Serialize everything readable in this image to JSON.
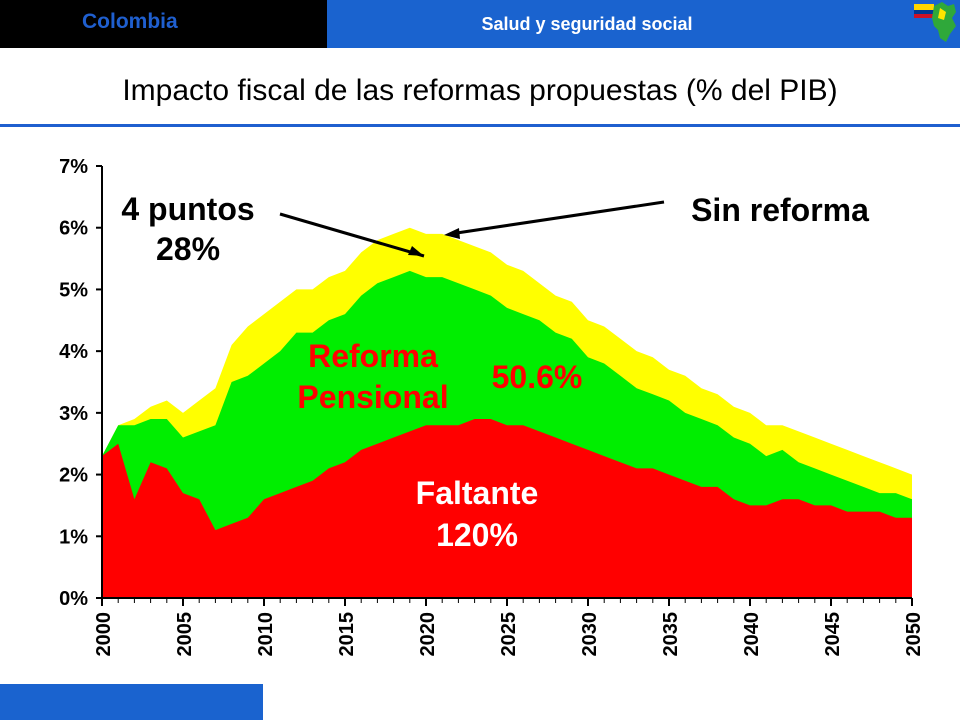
{
  "header": {
    "country": "Colombia",
    "section": "Salud y seguridad social",
    "brand_color": "#1a63cf"
  },
  "page": {
    "title": "Impacto fiscal de las reformas propuestas (% del PIB)"
  },
  "chart_data": {
    "type": "area",
    "title": "Impacto fiscal de las reformas propuestas (% del PIB)",
    "xlabel": "",
    "ylabel": "",
    "ylim": [
      0,
      7
    ],
    "xlim": [
      2000,
      2050
    ],
    "grid": false,
    "y_ticks": [
      "0%",
      "1%",
      "2%",
      "3%",
      "4%",
      "5%",
      "6%",
      "7%"
    ],
    "x_ticks": [
      "2000",
      "2005",
      "2010",
      "2015",
      "2020",
      "2025",
      "2030",
      "2035",
      "2040",
      "2045",
      "2050"
    ],
    "x": [
      2000,
      2001,
      2002,
      2003,
      2004,
      2005,
      2006,
      2007,
      2008,
      2009,
      2010,
      2011,
      2012,
      2013,
      2014,
      2015,
      2016,
      2017,
      2018,
      2019,
      2020,
      2021,
      2022,
      2023,
      2024,
      2025,
      2026,
      2027,
      2028,
      2029,
      2030,
      2031,
      2032,
      2033,
      2034,
      2035,
      2036,
      2037,
      2038,
      2039,
      2040,
      2041,
      2042,
      2043,
      2044,
      2045,
      2046,
      2047,
      2048,
      2049,
      2050
    ],
    "series": [
      {
        "color": "#ffff00",
        "values": [
          2.3,
          2.8,
          2.9,
          3.1,
          3.2,
          3.0,
          3.2,
          3.4,
          4.1,
          4.4,
          4.6,
          4.8,
          5.0,
          5.0,
          5.2,
          5.3,
          5.6,
          5.8,
          5.9,
          6.0,
          5.9,
          5.9,
          5.8,
          5.7,
          5.6,
          5.4,
          5.3,
          5.1,
          4.9,
          4.8,
          4.5,
          4.4,
          4.2,
          4.0,
          3.9,
          3.7,
          3.6,
          3.4,
          3.3,
          3.1,
          3.0,
          2.8,
          2.8,
          2.7,
          2.6,
          2.5,
          2.4,
          2.3,
          2.2,
          2.1,
          2.0
        ]
      },
      {
        "color": "#00ee00",
        "values": [
          2.3,
          2.8,
          2.8,
          2.9,
          2.9,
          2.6,
          2.7,
          2.8,
          3.5,
          3.6,
          3.8,
          4.0,
          4.3,
          4.3,
          4.5,
          4.6,
          4.9,
          5.1,
          5.2,
          5.3,
          5.2,
          5.2,
          5.1,
          5.0,
          4.9,
          4.7,
          4.6,
          4.5,
          4.3,
          4.2,
          3.9,
          3.8,
          3.6,
          3.4,
          3.3,
          3.2,
          3.0,
          2.9,
          2.8,
          2.6,
          2.5,
          2.3,
          2.4,
          2.2,
          2.1,
          2.0,
          1.9,
          1.8,
          1.7,
          1.7,
          1.6
        ]
      },
      {
        "color": "#ff0000",
        "values": [
          2.3,
          2.5,
          1.6,
          2.2,
          2.1,
          1.7,
          1.6,
          1.1,
          1.2,
          1.3,
          1.6,
          1.7,
          1.8,
          1.9,
          2.1,
          2.2,
          2.4,
          2.5,
          2.6,
          2.7,
          2.8,
          2.8,
          2.8,
          2.9,
          2.9,
          2.8,
          2.8,
          2.7,
          2.6,
          2.5,
          2.4,
          2.3,
          2.2,
          2.1,
          2.1,
          2.0,
          1.9,
          1.8,
          1.8,
          1.6,
          1.5,
          1.5,
          1.6,
          1.6,
          1.5,
          1.5,
          1.4,
          1.4,
          1.4,
          1.3,
          1.3
        ]
      }
    ],
    "annotations": {
      "puntos_line1": "4 puntos",
      "puntos_line2": "28%",
      "sin_reforma": "Sin reforma",
      "reforma_line1": "Reforma",
      "reforma_line2": "Pensional",
      "reforma_pct": "50.6%",
      "faltante_line1": "Faltante",
      "faltante_line2": "120%"
    }
  }
}
